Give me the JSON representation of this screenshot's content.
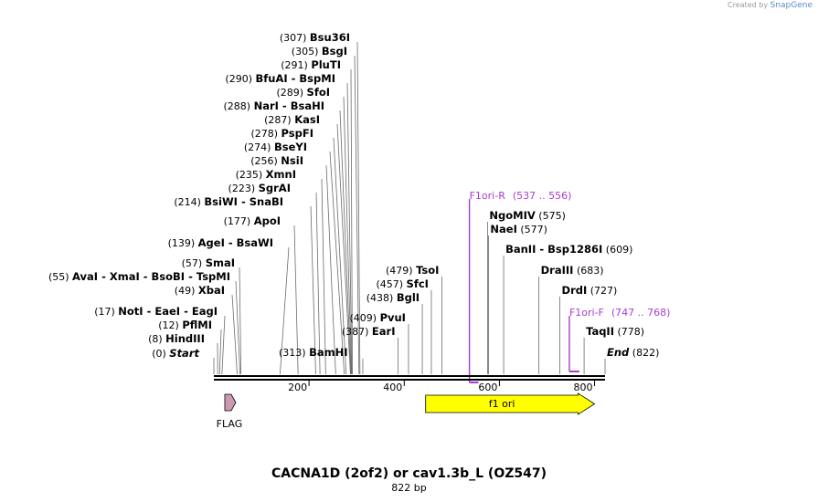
{
  "credit": {
    "prefix": "Created by",
    "brand": "SnapGene"
  },
  "title": "CACNA1D (2of2) or cav1.3b_L (OZ547)",
  "length_label": "822 bp",
  "sequence_length": 822,
  "axis_ticks": [
    "200",
    "400",
    "600",
    "800"
  ],
  "axis_tick_values": [
    200,
    400,
    600,
    800
  ],
  "sites": [
    {
      "pos": "(307)",
      "names": [
        "Bsu36I"
      ],
      "bp": 307
    },
    {
      "pos": "(305)",
      "names": [
        "BsgI"
      ],
      "bp": 305
    },
    {
      "pos": "(291)",
      "names": [
        "PluTI"
      ],
      "bp": 291
    },
    {
      "pos": "(290)",
      "names": [
        "BfuAI",
        "BspMI"
      ],
      "bp": 290
    },
    {
      "pos": "(289)",
      "names": [
        "SfoI"
      ],
      "bp": 289
    },
    {
      "pos": "(288)",
      "names": [
        "NarI",
        "BsaHI"
      ],
      "bp": 288
    },
    {
      "pos": "(287)",
      "names": [
        "KasI"
      ],
      "bp": 287
    },
    {
      "pos": "(278)",
      "names": [
        "PspFI"
      ],
      "bp": 278
    },
    {
      "pos": "(274)",
      "names": [
        "BseYI"
      ],
      "bp": 274
    },
    {
      "pos": "(256)",
      "names": [
        "NsiI"
      ],
      "bp": 256
    },
    {
      "pos": "(235)",
      "names": [
        "XmnI"
      ],
      "bp": 235
    },
    {
      "pos": "(223)",
      "names": [
        "SgrAI"
      ],
      "bp": 223
    },
    {
      "pos": "(214)",
      "names": [
        "BsiWI",
        "SnaBI"
      ],
      "bp": 214
    },
    {
      "pos": "(177)",
      "names": [
        "ApoI"
      ],
      "bp": 177
    },
    {
      "pos": "(139)",
      "names": [
        "AgeI",
        "BsaWI"
      ],
      "bp": 139
    },
    {
      "pos": "(57)",
      "names": [
        "SmaI"
      ],
      "bp": 57
    },
    {
      "pos": "(55)",
      "names": [
        "AvaI",
        "XmaI",
        "BsoBI",
        "TspMI"
      ],
      "bp": 55
    },
    {
      "pos": "(49)",
      "names": [
        "XbaI"
      ],
      "bp": 49
    },
    {
      "pos": "(17)",
      "names": [
        "NotI",
        "EaeI",
        "EagI"
      ],
      "bp": 17
    },
    {
      "pos": "(12)",
      "names": [
        "PflMI"
      ],
      "bp": 12
    },
    {
      "pos": "(8)",
      "names": [
        "HindIII"
      ],
      "bp": 8
    },
    {
      "pos": "(0)",
      "names": [
        "Start"
      ],
      "bp": 0
    },
    {
      "pos": "(313)",
      "names": [
        "BamHI"
      ],
      "bp": 313
    },
    {
      "pos": "(387)",
      "names": [
        "EarI"
      ],
      "bp": 387
    },
    {
      "pos": "(409)",
      "names": [
        "PvuI"
      ],
      "bp": 409
    },
    {
      "pos": "(438)",
      "names": [
        "BglI"
      ],
      "bp": 438
    },
    {
      "pos": "(457)",
      "names": [
        "SfcI"
      ],
      "bp": 457
    },
    {
      "pos": "(479)",
      "names": [
        "TsoI"
      ],
      "bp": 479
    },
    {
      "pos": "(575)",
      "names": [
        "NgoMIV"
      ],
      "bp": 575
    },
    {
      "pos": "(577)",
      "names": [
        "NaeI"
      ],
      "bp": 577
    },
    {
      "pos": "(609)",
      "names": [
        "BanII",
        "Bsp1286I"
      ],
      "bp": 609
    },
    {
      "pos": "(683)",
      "names": [
        "DraIII"
      ],
      "bp": 683
    },
    {
      "pos": "(727)",
      "names": [
        "DrdI"
      ],
      "bp": 727
    },
    {
      "pos": "(778)",
      "names": [
        "TaqII"
      ],
      "bp": 778
    },
    {
      "pos": "(822)",
      "names": [
        "End"
      ],
      "bp": 822
    }
  ],
  "primers": [
    {
      "name": "F1ori-R",
      "range": "(537 .. 556)",
      "start": 537,
      "end": 556,
      "direction": "reverse"
    },
    {
      "name": "F1ori-F",
      "range": "(747 .. 768)",
      "start": 747,
      "end": 768,
      "direction": "forward"
    }
  ],
  "features": [
    {
      "name": "FLAG",
      "start": 23,
      "end": 46,
      "color": "#cc99b2",
      "direction": "forward"
    },
    {
      "name": "f1 ori",
      "start": 445,
      "end": 800,
      "color": "#ffff00",
      "direction": "forward"
    }
  ],
  "colors": {
    "primer": "#a83cd4",
    "backbone": "#000000",
    "site_line": "#666666"
  }
}
